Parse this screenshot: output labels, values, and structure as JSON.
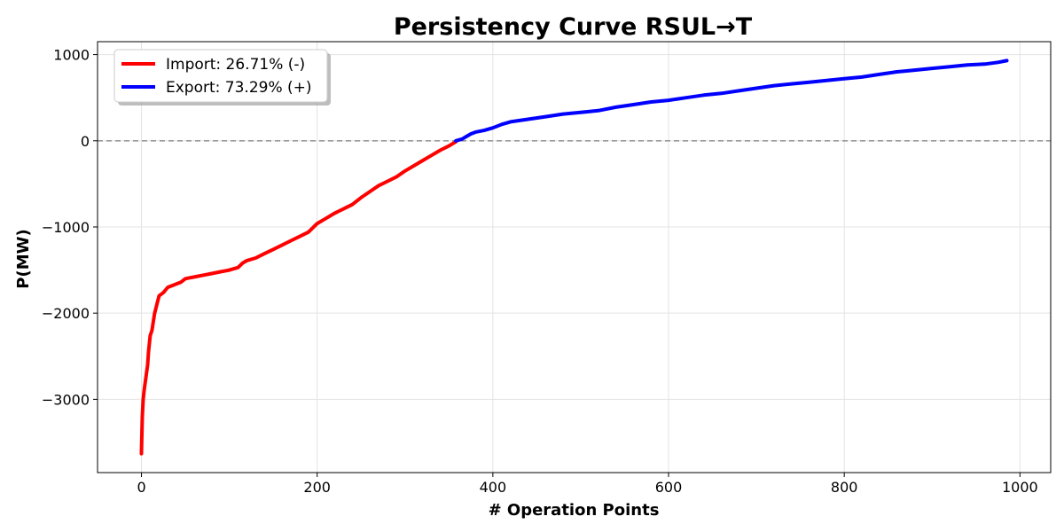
{
  "chart_data": {
    "type": "line",
    "title": "Persistency Curve RSUL→T",
    "xlabel": "# Operation Points",
    "ylabel": "P(MW)",
    "xlim": [
      -50,
      1035
    ],
    "ylim": [
      -3850,
      1150
    ],
    "x_ticks": [
      0,
      200,
      400,
      600,
      800,
      1000
    ],
    "x_tick_labels": [
      "0",
      "200",
      "400",
      "600",
      "800",
      "1000"
    ],
    "y_ticks": [
      1000,
      0,
      -1000,
      -2000,
      -3000
    ],
    "y_tick_labels": [
      "1000",
      "0",
      "−1000",
      "−2000",
      "−3000"
    ],
    "grid": true,
    "legend_position": "top-left",
    "reference_line": {
      "y": 0,
      "style": "dashed",
      "color": "#999999"
    },
    "series": [
      {
        "name": "Import: 26.71% (-)",
        "color": "#ff0000",
        "x": [
          0,
          1,
          2,
          3,
          5,
          7,
          8,
          10,
          12,
          15,
          18,
          20,
          25,
          30,
          35,
          40,
          45,
          50,
          55,
          60,
          70,
          80,
          90,
          100,
          110,
          115,
          120,
          130,
          140,
          150,
          160,
          170,
          180,
          190,
          200,
          210,
          220,
          230,
          240,
          250,
          260,
          270,
          280,
          290,
          300,
          310,
          320,
          330,
          340,
          350,
          358
        ],
        "y": [
          -3630,
          -3200,
          -3000,
          -2900,
          -2750,
          -2600,
          -2450,
          -2260,
          -2200,
          -2000,
          -1880,
          -1800,
          -1760,
          -1700,
          -1680,
          -1660,
          -1640,
          -1600,
          -1590,
          -1580,
          -1560,
          -1540,
          -1520,
          -1500,
          -1470,
          -1420,
          -1390,
          -1360,
          -1310,
          -1260,
          -1210,
          -1160,
          -1110,
          -1060,
          -960,
          -900,
          -840,
          -790,
          -740,
          -660,
          -590,
          -520,
          -470,
          -420,
          -350,
          -290,
          -230,
          -170,
          -110,
          -60,
          -10
        ]
      },
      {
        "name": "Export: 73.29% (+)",
        "color": "#0000ff",
        "x": [
          358,
          365,
          370,
          375,
          380,
          390,
          400,
          410,
          420,
          440,
          460,
          480,
          500,
          520,
          540,
          560,
          580,
          600,
          620,
          640,
          660,
          680,
          700,
          720,
          740,
          760,
          780,
          800,
          820,
          840,
          860,
          880,
          900,
          920,
          940,
          960,
          975,
          985
        ],
        "y": [
          0,
          20,
          50,
          80,
          100,
          120,
          150,
          190,
          220,
          250,
          280,
          310,
          330,
          350,
          390,
          420,
          450,
          470,
          500,
          530,
          550,
          580,
          610,
          640,
          660,
          680,
          700,
          720,
          740,
          770,
          800,
          820,
          840,
          860,
          880,
          890,
          910,
          930
        ]
      }
    ]
  }
}
